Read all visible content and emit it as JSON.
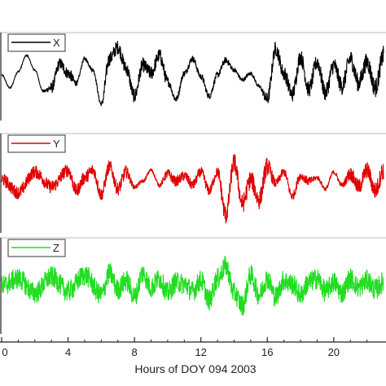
{
  "chart_data": {
    "type": "line",
    "xlabel": "Hours of DOY 094 2003",
    "xlim": [
      0,
      23
    ],
    "x_ticks": [
      0,
      4,
      8,
      12,
      16,
      20
    ],
    "x_tick_labels": [
      "0",
      "4",
      "8",
      "12",
      "16",
      "20"
    ],
    "grid": false,
    "legend_placement": "top-left",
    "panels": [
      {
        "name": "X",
        "color": "#000000",
        "ylim": [
          -1.2,
          1.2
        ],
        "knots": [
          [
            0,
            0.05
          ],
          [
            0.5,
            -0.35
          ],
          [
            1,
            0.15
          ],
          [
            1.5,
            0.65
          ],
          [
            2,
            0.2
          ],
          [
            2.5,
            -0.45
          ],
          [
            3,
            -0.35
          ],
          [
            3.5,
            0.4
          ],
          [
            4,
            0.1
          ],
          [
            4.5,
            -0.2
          ],
          [
            5,
            0.55
          ],
          [
            5.5,
            0.2
          ],
          [
            6,
            -0.85
          ],
          [
            6.5,
            0.55
          ],
          [
            7,
            0.9
          ],
          [
            7.5,
            0.25
          ],
          [
            8,
            -0.6
          ],
          [
            8.5,
            0.35
          ],
          [
            9,
            0.1
          ],
          [
            9.5,
            0.65
          ],
          [
            10,
            -0.15
          ],
          [
            10.5,
            -0.7
          ],
          [
            11,
            0.1
          ],
          [
            11.5,
            0.55
          ],
          [
            12,
            0.0
          ],
          [
            12.5,
            -0.6
          ],
          [
            13,
            0.05
          ],
          [
            13.5,
            0.5
          ],
          [
            14,
            0.2
          ],
          [
            14.5,
            -0.1
          ],
          [
            15,
            0.1
          ],
          [
            15.5,
            -0.3
          ],
          [
            16,
            -0.7
          ],
          [
            16.5,
            0.85
          ],
          [
            17,
            0.1
          ],
          [
            17.5,
            -0.55
          ],
          [
            18,
            0.6
          ],
          [
            18.5,
            -0.4
          ],
          [
            19,
            0.45
          ],
          [
            19.5,
            -0.5
          ],
          [
            20,
            0.35
          ],
          [
            20.5,
            -0.3
          ],
          [
            21,
            0.55
          ],
          [
            21.5,
            -0.2
          ],
          [
            22,
            0.45
          ],
          [
            22.5,
            -0.35
          ],
          [
            23,
            0.65
          ]
        ],
        "noise": [
          [
            0,
            0.02
          ],
          [
            2.6,
            0.02
          ],
          [
            3.0,
            0.18
          ],
          [
            4.2,
            0.18
          ],
          [
            4.6,
            0.06
          ],
          [
            6.0,
            0.06
          ],
          [
            6.2,
            0.22
          ],
          [
            9.8,
            0.22
          ],
          [
            10.2,
            0.1
          ],
          [
            13.5,
            0.1
          ],
          [
            14.2,
            0.06
          ],
          [
            15.6,
            0.06
          ],
          [
            16.0,
            0.22
          ],
          [
            23,
            0.3
          ]
        ]
      },
      {
        "name": "Y",
        "color": "#e00000",
        "ylim": [
          -1.2,
          1.2
        ],
        "knots": [
          [
            0,
            0.1
          ],
          [
            1,
            -0.25
          ],
          [
            2,
            0.3
          ],
          [
            3,
            -0.1
          ],
          [
            4,
            0.35
          ],
          [
            4.5,
            -0.2
          ],
          [
            5,
            0.15
          ],
          [
            5.5,
            0.35
          ],
          [
            6,
            -0.3
          ],
          [
            6.5,
            0.45
          ],
          [
            7,
            -0.15
          ],
          [
            7.5,
            0.3
          ],
          [
            8,
            -0.1
          ],
          [
            8.5,
            0.05
          ],
          [
            9,
            0.35
          ],
          [
            9.5,
            -0.05
          ],
          [
            10,
            0.25
          ],
          [
            10.5,
            0.05
          ],
          [
            11,
            0.2
          ],
          [
            11.5,
            -0.05
          ],
          [
            12,
            0.3
          ],
          [
            12.5,
            -0.2
          ],
          [
            13,
            0.3
          ],
          [
            13.5,
            -0.85
          ],
          [
            14,
            0.55
          ],
          [
            14.5,
            -0.55
          ],
          [
            15,
            0.1
          ],
          [
            15.5,
            -0.45
          ],
          [
            16,
            0.45
          ],
          [
            16.5,
            0.0
          ],
          [
            17,
            0.3
          ],
          [
            17.5,
            -0.35
          ],
          [
            18,
            0.2
          ],
          [
            18.5,
            0.05
          ],
          [
            19,
            0.15
          ],
          [
            19.5,
            -0.15
          ],
          [
            20,
            0.3
          ],
          [
            20.5,
            -0.05
          ],
          [
            21,
            0.25
          ],
          [
            21.5,
            -0.1
          ],
          [
            22,
            0.35
          ],
          [
            22.5,
            -0.2
          ],
          [
            23,
            0.35
          ]
        ],
        "noise": [
          [
            0,
            0.18
          ],
          [
            7.5,
            0.18
          ],
          [
            8.0,
            0.05
          ],
          [
            9.5,
            0.05
          ],
          [
            10.0,
            0.14
          ],
          [
            13.0,
            0.14
          ],
          [
            13.3,
            0.26
          ],
          [
            16.0,
            0.26
          ],
          [
            16.5,
            0.12
          ],
          [
            18.5,
            0.12
          ],
          [
            19.0,
            0.06
          ],
          [
            20.5,
            0.06
          ],
          [
            21.0,
            0.2
          ],
          [
            23,
            0.26
          ]
        ]
      },
      {
        "name": "Z",
        "color": "#22dd22",
        "ylim": [
          -1.2,
          1.2
        ],
        "knots": [
          [
            0,
            0.0
          ],
          [
            1,
            0.2
          ],
          [
            2,
            -0.2
          ],
          [
            3,
            0.25
          ],
          [
            4,
            -0.15
          ],
          [
            5,
            0.3
          ],
          [
            6,
            -0.25
          ],
          [
            6.5,
            0.35
          ],
          [
            7,
            -0.1
          ],
          [
            7.5,
            0.15
          ],
          [
            8,
            -0.3
          ],
          [
            8.5,
            0.35
          ],
          [
            9,
            -0.05
          ],
          [
            9.5,
            0.2
          ],
          [
            10,
            -0.2
          ],
          [
            10.5,
            0.1
          ],
          [
            11,
            0.05
          ],
          [
            11.5,
            -0.15
          ],
          [
            12,
            0.15
          ],
          [
            12.5,
            -0.4
          ],
          [
            13,
            0.2
          ],
          [
            13.5,
            0.55
          ],
          [
            14,
            -0.2
          ],
          [
            14.5,
            -0.55
          ],
          [
            15,
            0.3
          ],
          [
            15.5,
            -0.25
          ],
          [
            16,
            0.2
          ],
          [
            16.5,
            -0.3
          ],
          [
            17,
            0.15
          ],
          [
            17.5,
            0.05
          ],
          [
            18,
            -0.25
          ],
          [
            18.5,
            0.1
          ],
          [
            19,
            0.2
          ],
          [
            19.5,
            -0.15
          ],
          [
            20,
            0.1
          ],
          [
            20.5,
            -0.2
          ],
          [
            21,
            0.2
          ],
          [
            21.5,
            -0.05
          ],
          [
            22,
            0.15
          ],
          [
            22.5,
            -0.1
          ],
          [
            23,
            0.1
          ]
        ],
        "noise": [
          [
            0,
            0.3
          ],
          [
            23,
            0.3
          ]
        ]
      }
    ]
  }
}
